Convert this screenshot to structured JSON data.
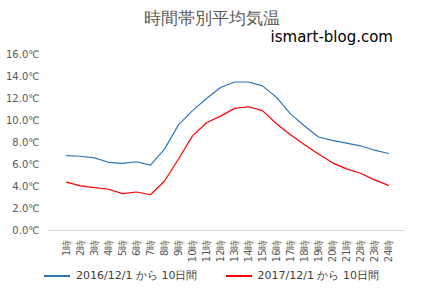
{
  "chart_data": {
    "type": "line",
    "title": "時間帯別平均気温",
    "annotation": "ismart-blog.com",
    "categories": [
      "1時",
      "2時",
      "3時",
      "4時",
      "5時",
      "6時",
      "7時",
      "8時",
      "9時",
      "10時",
      "11時",
      "12時",
      "13時",
      "14時",
      "15時",
      "16時",
      "17時",
      "18時",
      "19時",
      "20時",
      "21時",
      "22時",
      "23時",
      "24時"
    ],
    "series": [
      {
        "name": "2016/12/1 から 10日間",
        "color": "#2e75b6",
        "values": [
          6.8,
          6.75,
          6.6,
          6.2,
          6.1,
          6.25,
          5.95,
          7.4,
          9.6,
          10.9,
          12.0,
          13.0,
          13.5,
          13.5,
          13.15,
          12.1,
          10.6,
          9.5,
          8.5,
          8.2,
          7.95,
          7.7,
          7.3,
          7.0
        ]
      },
      {
        "name": "2017/12/1 から 10日間",
        "color": "#ff0000",
        "values": [
          4.4,
          4.05,
          3.9,
          3.75,
          3.35,
          3.5,
          3.25,
          4.5,
          6.5,
          8.6,
          9.8,
          10.4,
          11.1,
          11.25,
          10.9,
          9.7,
          8.7,
          7.8,
          6.95,
          6.15,
          5.6,
          5.2,
          4.6,
          4.1
        ]
      }
    ],
    "ylim": [
      0,
      16
    ],
    "yticks": [
      {
        "value": 0,
        "label": "0.0℃"
      },
      {
        "value": 2,
        "label": "2.0℃"
      },
      {
        "value": 4,
        "label": "4.0℃"
      },
      {
        "value": 6,
        "label": "6.0℃"
      },
      {
        "value": 8,
        "label": "8.0℃"
      },
      {
        "value": 10,
        "label": "10.0℃"
      },
      {
        "value": 12,
        "label": "12.0℃"
      },
      {
        "value": 14,
        "label": "14.0℃"
      },
      {
        "value": 16,
        "label": "16.0℃"
      }
    ],
    "grid": false,
    "legend": "bottom"
  }
}
